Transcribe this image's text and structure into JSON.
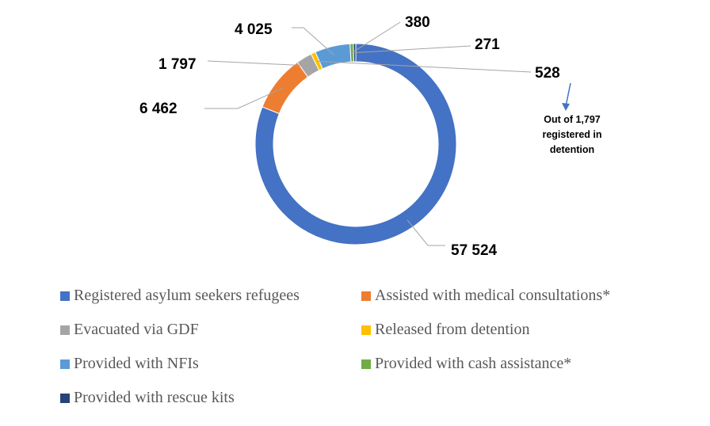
{
  "chart_data": {
    "type": "donut",
    "series": [
      {
        "name": "Registered asylum seekers  refugees",
        "value": 57524,
        "label": "57 524",
        "color": "#4472C4"
      },
      {
        "name": "Assisted with medical consultations*",
        "value": 6462,
        "label": "6 462",
        "color": "#ED7D31"
      },
      {
        "name": "Evacuated via GDF",
        "value": 1797,
        "label": "1 797",
        "color": "#A5A5A5"
      },
      {
        "name": "Released from detention",
        "value": 528,
        "label": "528",
        "color": "#FFC000"
      },
      {
        "name": "Provided with NFIs",
        "value": 4025,
        "label": "4 025",
        "color": "#5B9BD5"
      },
      {
        "name": "Provided with cash assistance*",
        "value": 380,
        "label": "380",
        "color": "#70AD47"
      },
      {
        "name": "Provided with rescue kits",
        "value": 271,
        "label": "271",
        "color": "#264478"
      }
    ],
    "annotation": [
      "Out of 1,797",
      "registered in",
      "detention"
    ],
    "legend_position": "bottom"
  }
}
